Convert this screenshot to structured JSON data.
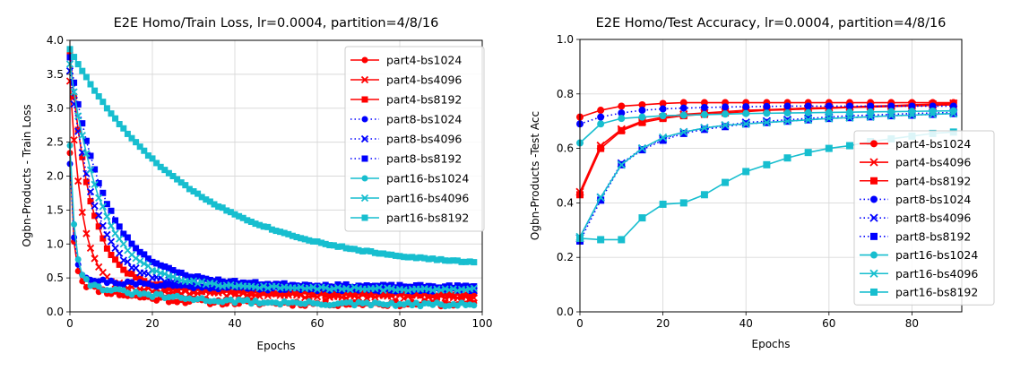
{
  "chart_data": [
    {
      "type": "line",
      "title": "E2E Homo/Train Loss, lr=0.0004, partition=4/8/16",
      "xlabel": "Epochs",
      "ylabel": "Ogbn-Products - Train Loss",
      "xlim": [
        0,
        100
      ],
      "ylim": [
        0,
        4.0
      ],
      "xticks": [
        0,
        20,
        40,
        60,
        80,
        100
      ],
      "yticks": [
        0.0,
        0.5,
        1.0,
        1.5,
        2.0,
        2.5,
        3.0,
        3.5,
        4.0
      ],
      "ytick_decimals": 1,
      "grid": true,
      "legend_position": "top-right",
      "x": [
        0,
        1,
        2,
        3,
        4,
        5,
        6,
        7,
        8,
        9,
        10,
        11,
        12,
        13,
        14,
        15,
        16,
        17,
        18,
        19,
        20,
        21,
        22,
        23,
        24,
        25,
        26,
        27,
        28,
        29,
        30,
        31,
        32,
        33,
        34,
        35,
        36,
        37,
        38,
        39,
        40,
        41,
        42,
        43,
        44,
        45,
        46,
        47,
        48,
        49,
        50,
        51,
        52,
        53,
        54,
        55,
        56,
        57,
        58,
        59,
        60,
        61,
        62,
        63,
        64,
        65,
        66,
        67,
        68,
        69,
        70,
        71,
        72,
        73,
        74,
        75,
        76,
        77,
        78,
        79,
        80,
        81,
        82,
        83,
        84,
        85,
        86,
        87,
        88,
        89,
        90,
        91,
        92,
        93,
        94,
        95,
        96,
        97,
        98
      ],
      "series": [
        {
          "name": "part4-bs1024",
          "color": "#ff0000",
          "style": "solid",
          "marker": "circle",
          "start": 2.0,
          "end": 0.12,
          "tau": 0.9,
          "noise": 0.04,
          "plateau": 0.34,
          "plateau_tau": 14,
          "seed": 11
        },
        {
          "name": "part4-bs4096",
          "color": "#ff0000",
          "style": "solid",
          "marker": "x",
          "start": 3.2,
          "end": 0.22,
          "tau": 3.0,
          "noise": 0.03,
          "plateau": 0.2,
          "plateau_tau": 25,
          "seed": 12
        },
        {
          "name": "part4-bs8192",
          "color": "#ff0000",
          "style": "solid",
          "marker": "square",
          "start": 3.6,
          "end": 0.25,
          "tau": 5.0,
          "noise": 0.025,
          "plateau": 0.2,
          "plateau_tau": 30,
          "seed": 13
        },
        {
          "name": "part8-bs1024",
          "color": "#0000ff",
          "style": "dotted",
          "marker": "circle",
          "start": 2.0,
          "end": 0.32,
          "tau": 1.0,
          "noise": 0.03,
          "plateau": 0.18,
          "plateau_tau": 25,
          "seed": 21
        },
        {
          "name": "part8-bs4096",
          "color": "#0000ff",
          "style": "dotted",
          "marker": "x",
          "start": 3.4,
          "end": 0.33,
          "tau": 6.0,
          "noise": 0.025,
          "plateau": 0.15,
          "plateau_tau": 30,
          "seed": 22
        },
        {
          "name": "part8-bs8192",
          "color": "#0000ff",
          "style": "dotted",
          "marker": "square",
          "start": 3.6,
          "end": 0.36,
          "tau": 8.5,
          "noise": 0.02,
          "plateau": 0.15,
          "plateau_tau": 35,
          "seed": 23
        },
        {
          "name": "part16-bs1024",
          "color": "#17becf",
          "style": "solid",
          "marker": "circle",
          "start": 2.1,
          "end": 0.1,
          "tau": 1.2,
          "noise": 0.03,
          "plateau": 0.35,
          "plateau_tau": 22,
          "seed": 31
        },
        {
          "name": "part16-bs4096",
          "color": "#17becf",
          "style": "solid",
          "marker": "x",
          "start": 3.5,
          "end": 0.32,
          "tau": 7.5,
          "noise": 0.02,
          "plateau": 0.15,
          "plateau_tau": 35,
          "seed": 32
        },
        {
          "name": "part16-bs8192",
          "color": "#17becf",
          "style": "solid",
          "marker": "square",
          "start": 3.87,
          "end": 0.62,
          "tau": 29.0,
          "noise": 0.01,
          "plateau": 0.0,
          "plateau_tau": 1,
          "seed": 33
        }
      ]
    },
    {
      "type": "line",
      "title": "E2E Homo/Test Accuracy, lr=0.0004, partition=4/8/16",
      "xlabel": "Epochs",
      "ylabel": "Ogbn-Products -Test Acc",
      "xlim": [
        0,
        92
      ],
      "ylim": [
        0.0,
        1.0
      ],
      "xticks": [
        0,
        20,
        40,
        60,
        80
      ],
      "yticks": [
        0.0,
        0.2,
        0.4,
        0.6,
        0.8,
        1.0
      ],
      "ytick_decimals": 1,
      "grid": true,
      "legend_position": "right",
      "x": [
        0,
        5,
        10,
        15,
        20,
        25,
        30,
        35,
        40,
        45,
        50,
        55,
        60,
        65,
        70,
        75,
        80,
        85,
        90
      ],
      "series": [
        {
          "name": "part4-bs1024",
          "color": "#ff0000",
          "style": "solid",
          "marker": "circle",
          "values": [
            0.715,
            0.74,
            0.755,
            0.76,
            0.765,
            0.768,
            0.768,
            0.768,
            0.768,
            0.768,
            0.768,
            0.768,
            0.768,
            0.768,
            0.768,
            0.768,
            0.768,
            0.768,
            0.768
          ]
        },
        {
          "name": "part4-bs4096",
          "color": "#ff0000",
          "style": "solid",
          "marker": "x",
          "values": [
            0.44,
            0.61,
            0.67,
            0.7,
            0.715,
            0.725,
            0.73,
            0.735,
            0.74,
            0.742,
            0.745,
            0.748,
            0.75,
            0.752,
            0.755,
            0.757,
            0.76,
            0.762,
            0.765
          ]
        },
        {
          "name": "part4-bs8192",
          "color": "#ff0000",
          "style": "solid",
          "marker": "square",
          "values": [
            0.43,
            0.6,
            0.665,
            0.695,
            0.71,
            0.72,
            0.725,
            0.73,
            0.735,
            0.74,
            0.742,
            0.745,
            0.747,
            0.75,
            0.752,
            0.754,
            0.756,
            0.758,
            0.76
          ]
        },
        {
          "name": "part8-bs1024",
          "color": "#0000ff",
          "style": "dotted",
          "marker": "circle",
          "values": [
            0.69,
            0.715,
            0.73,
            0.74,
            0.745,
            0.748,
            0.75,
            0.752,
            0.753,
            0.754,
            0.755,
            0.755,
            0.755,
            0.755,
            0.755,
            0.755,
            0.755,
            0.755,
            0.755
          ]
        },
        {
          "name": "part8-bs4096",
          "color": "#0000ff",
          "style": "dotted",
          "marker": "x",
          "values": [
            0.27,
            0.42,
            0.545,
            0.6,
            0.635,
            0.66,
            0.675,
            0.685,
            0.695,
            0.7,
            0.705,
            0.71,
            0.715,
            0.72,
            0.722,
            0.725,
            0.728,
            0.73,
            0.732
          ]
        },
        {
          "name": "part8-bs8192",
          "color": "#0000ff",
          "style": "dotted",
          "marker": "square",
          "values": [
            0.26,
            0.41,
            0.54,
            0.595,
            0.63,
            0.655,
            0.67,
            0.68,
            0.69,
            0.695,
            0.7,
            0.705,
            0.71,
            0.713,
            0.716,
            0.72,
            0.722,
            0.725,
            0.728
          ]
        },
        {
          "name": "part16-bs1024",
          "color": "#17becf",
          "style": "solid",
          "marker": "circle",
          "values": [
            0.62,
            0.69,
            0.71,
            0.715,
            0.72,
            0.722,
            0.724,
            0.726,
            0.728,
            0.729,
            0.73,
            0.731,
            0.732,
            0.733,
            0.734,
            0.735,
            0.736,
            0.737,
            0.738
          ]
        },
        {
          "name": "part16-bs4096",
          "color": "#17becf",
          "style": "solid",
          "marker": "x",
          "values": [
            0.275,
            0.42,
            0.54,
            0.6,
            0.64,
            0.66,
            0.675,
            0.685,
            0.69,
            0.695,
            0.7,
            0.705,
            0.71,
            0.713,
            0.716,
            0.72,
            0.722,
            0.725,
            0.728
          ]
        },
        {
          "name": "part16-bs8192",
          "color": "#17becf",
          "style": "solid",
          "marker": "square",
          "values": [
            0.27,
            0.265,
            0.265,
            0.345,
            0.395,
            0.4,
            0.43,
            0.475,
            0.515,
            0.54,
            0.565,
            0.585,
            0.6,
            0.61,
            0.625,
            0.635,
            0.645,
            0.655,
            0.66
          ]
        }
      ]
    }
  ]
}
